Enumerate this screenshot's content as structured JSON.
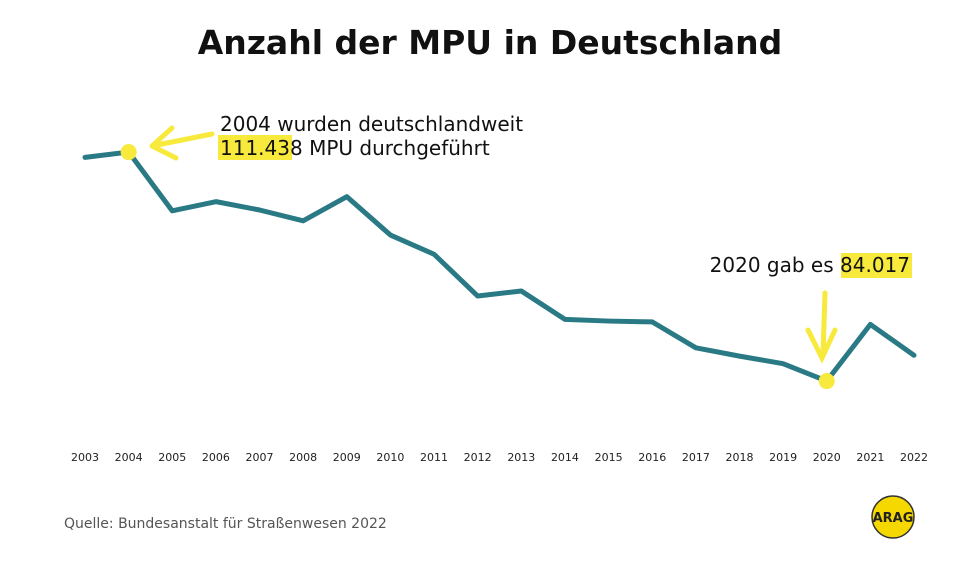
{
  "chart_data": {
    "type": "line",
    "title": "Anzahl der MPU in Deutschland",
    "xlabel": "",
    "ylabel": "",
    "categories": [
      "2003",
      "2004",
      "2005",
      "2006",
      "2007",
      "2008",
      "2009",
      "2010",
      "2011",
      "2012",
      "2013",
      "2014",
      "2015",
      "2016",
      "2017",
      "2018",
      "2019",
      "2020",
      "2021",
      "2022"
    ],
    "series": [
      {
        "values": [
          110800,
          111438,
          104400,
          105500,
          104500,
          103200,
          106100,
          101500,
          99200,
          94200,
          94800,
          91400,
          91200,
          91100,
          88000,
          87000,
          86100,
          84017,
          90800,
          87100
        ],
        "color": "#2a7a85"
      }
    ],
    "ylim": [
      80000,
      115000
    ],
    "grid": false,
    "legend": "none",
    "annotations": [
      {
        "year": "2004",
        "line1": "2004 wurden deutschlandweit",
        "highlight": "111.438",
        "rest": " MPU durchgeführt"
      },
      {
        "year": "2020",
        "prefix": "2020 gab es ",
        "highlight": "84.017"
      }
    ],
    "highlight_color": "#f7ea3c"
  },
  "source": "Quelle:  Bundesanstalt für Straßenwesen 2022",
  "logo": "ARAG"
}
